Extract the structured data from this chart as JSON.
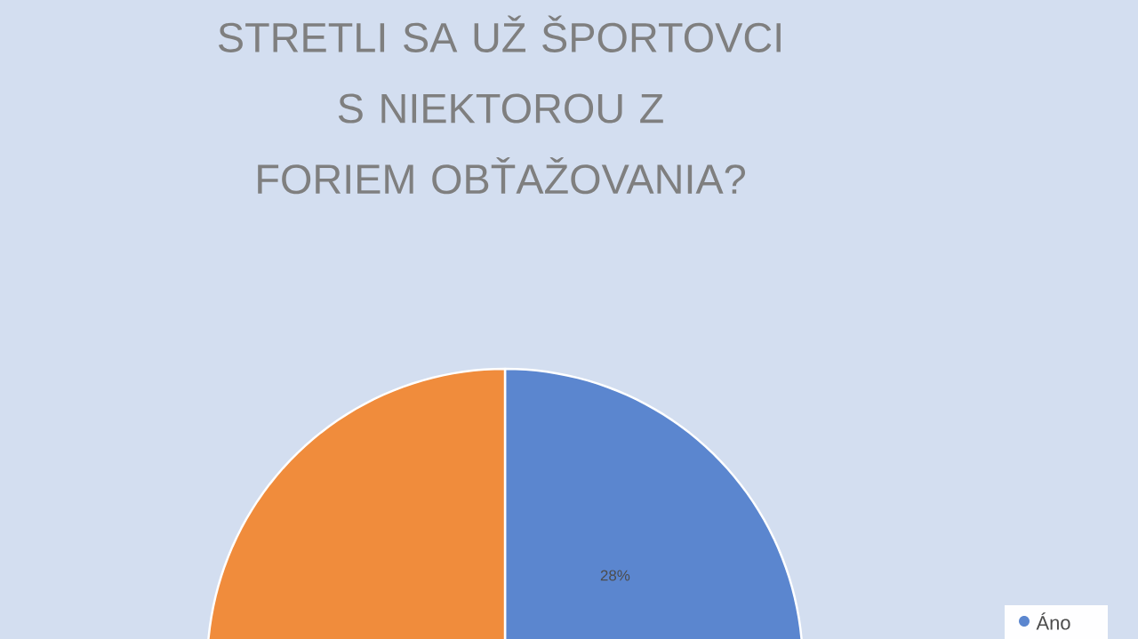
{
  "chart_data": {
    "type": "pie",
    "title": "STRETLI SA UŽ ŠPORTOVCI S NIEKTOROU Z FORIEM OBŤAŽOVANIA?",
    "categories": [
      "Áno",
      null
    ],
    "values": [
      28,
      72
    ],
    "colors": [
      "#5b86cf",
      "#f08c3c"
    ],
    "value_labels": [
      "28%",
      null
    ],
    "legend": "top right"
  }
}
